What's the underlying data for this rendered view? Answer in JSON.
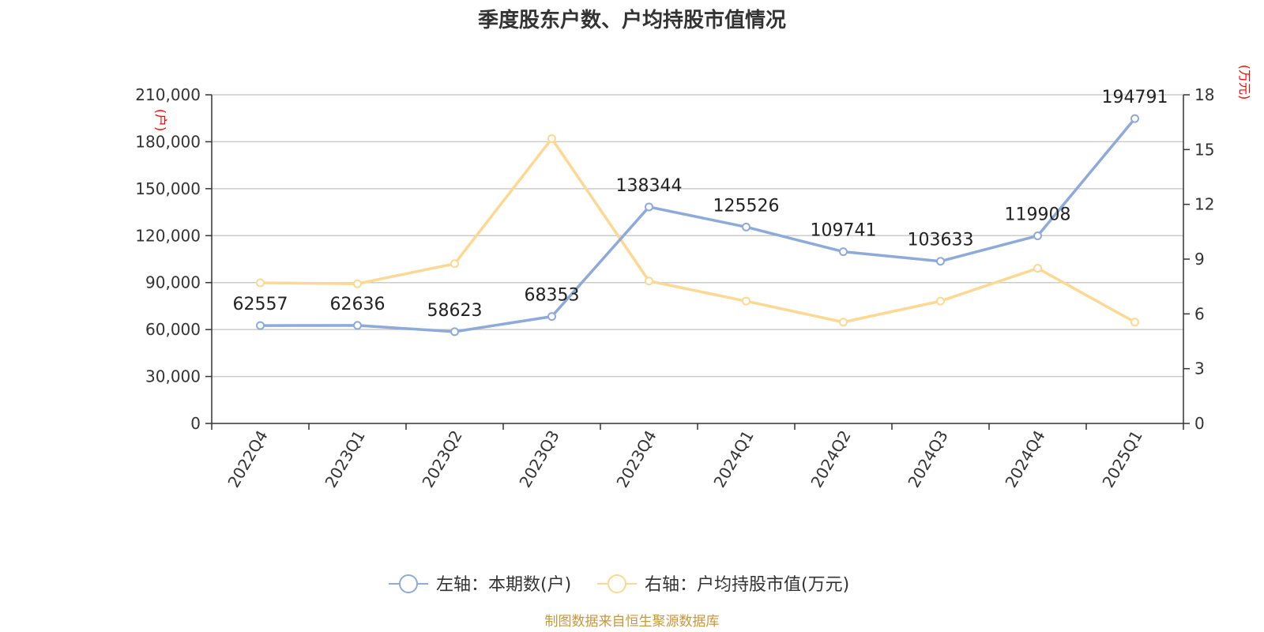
{
  "chart_data": {
    "type": "line",
    "title": "季度股东户数、户均持股市值情况",
    "categories": [
      "2022Q4",
      "2023Q1",
      "2023Q2",
      "2023Q3",
      "2023Q4",
      "2024Q1",
      "2024Q2",
      "2024Q3",
      "2024Q4",
      "2025Q1"
    ],
    "series": [
      {
        "name": "左轴：本期数(户)",
        "axis": "left",
        "color": "#8eaad8",
        "values": [
          62557,
          62636,
          58623,
          68353,
          138344,
          125526,
          109741,
          103633,
          119908,
          194791
        ],
        "show_labels": true
      },
      {
        "name": "右轴：户均持股市值(万元)",
        "axis": "right",
        "color": "#fdd893",
        "values": [
          7.7,
          7.65,
          8.75,
          15.6,
          7.8,
          6.7,
          5.55,
          6.7,
          8.5,
          5.55
        ],
        "show_labels": false
      }
    ],
    "left_axis": {
      "unit": "(户)",
      "ylim": [
        0,
        210000
      ],
      "ticks": [
        0,
        30000,
        60000,
        90000,
        120000,
        150000,
        180000,
        210000
      ],
      "tick_labels": [
        "0",
        "30,000",
        "60,000",
        "90,000",
        "120,000",
        "150,000",
        "180,000",
        "210,000"
      ]
    },
    "right_axis": {
      "unit": "(万元)",
      "ylim": [
        0,
        18
      ],
      "ticks": [
        0,
        3,
        6,
        9,
        12,
        15,
        18
      ],
      "tick_labels": [
        "0",
        "3",
        "6",
        "9",
        "12",
        "15",
        "18"
      ]
    },
    "grid": true,
    "legend_position": "bottom-center",
    "source": "制图数据来自恒生聚源数据库"
  }
}
